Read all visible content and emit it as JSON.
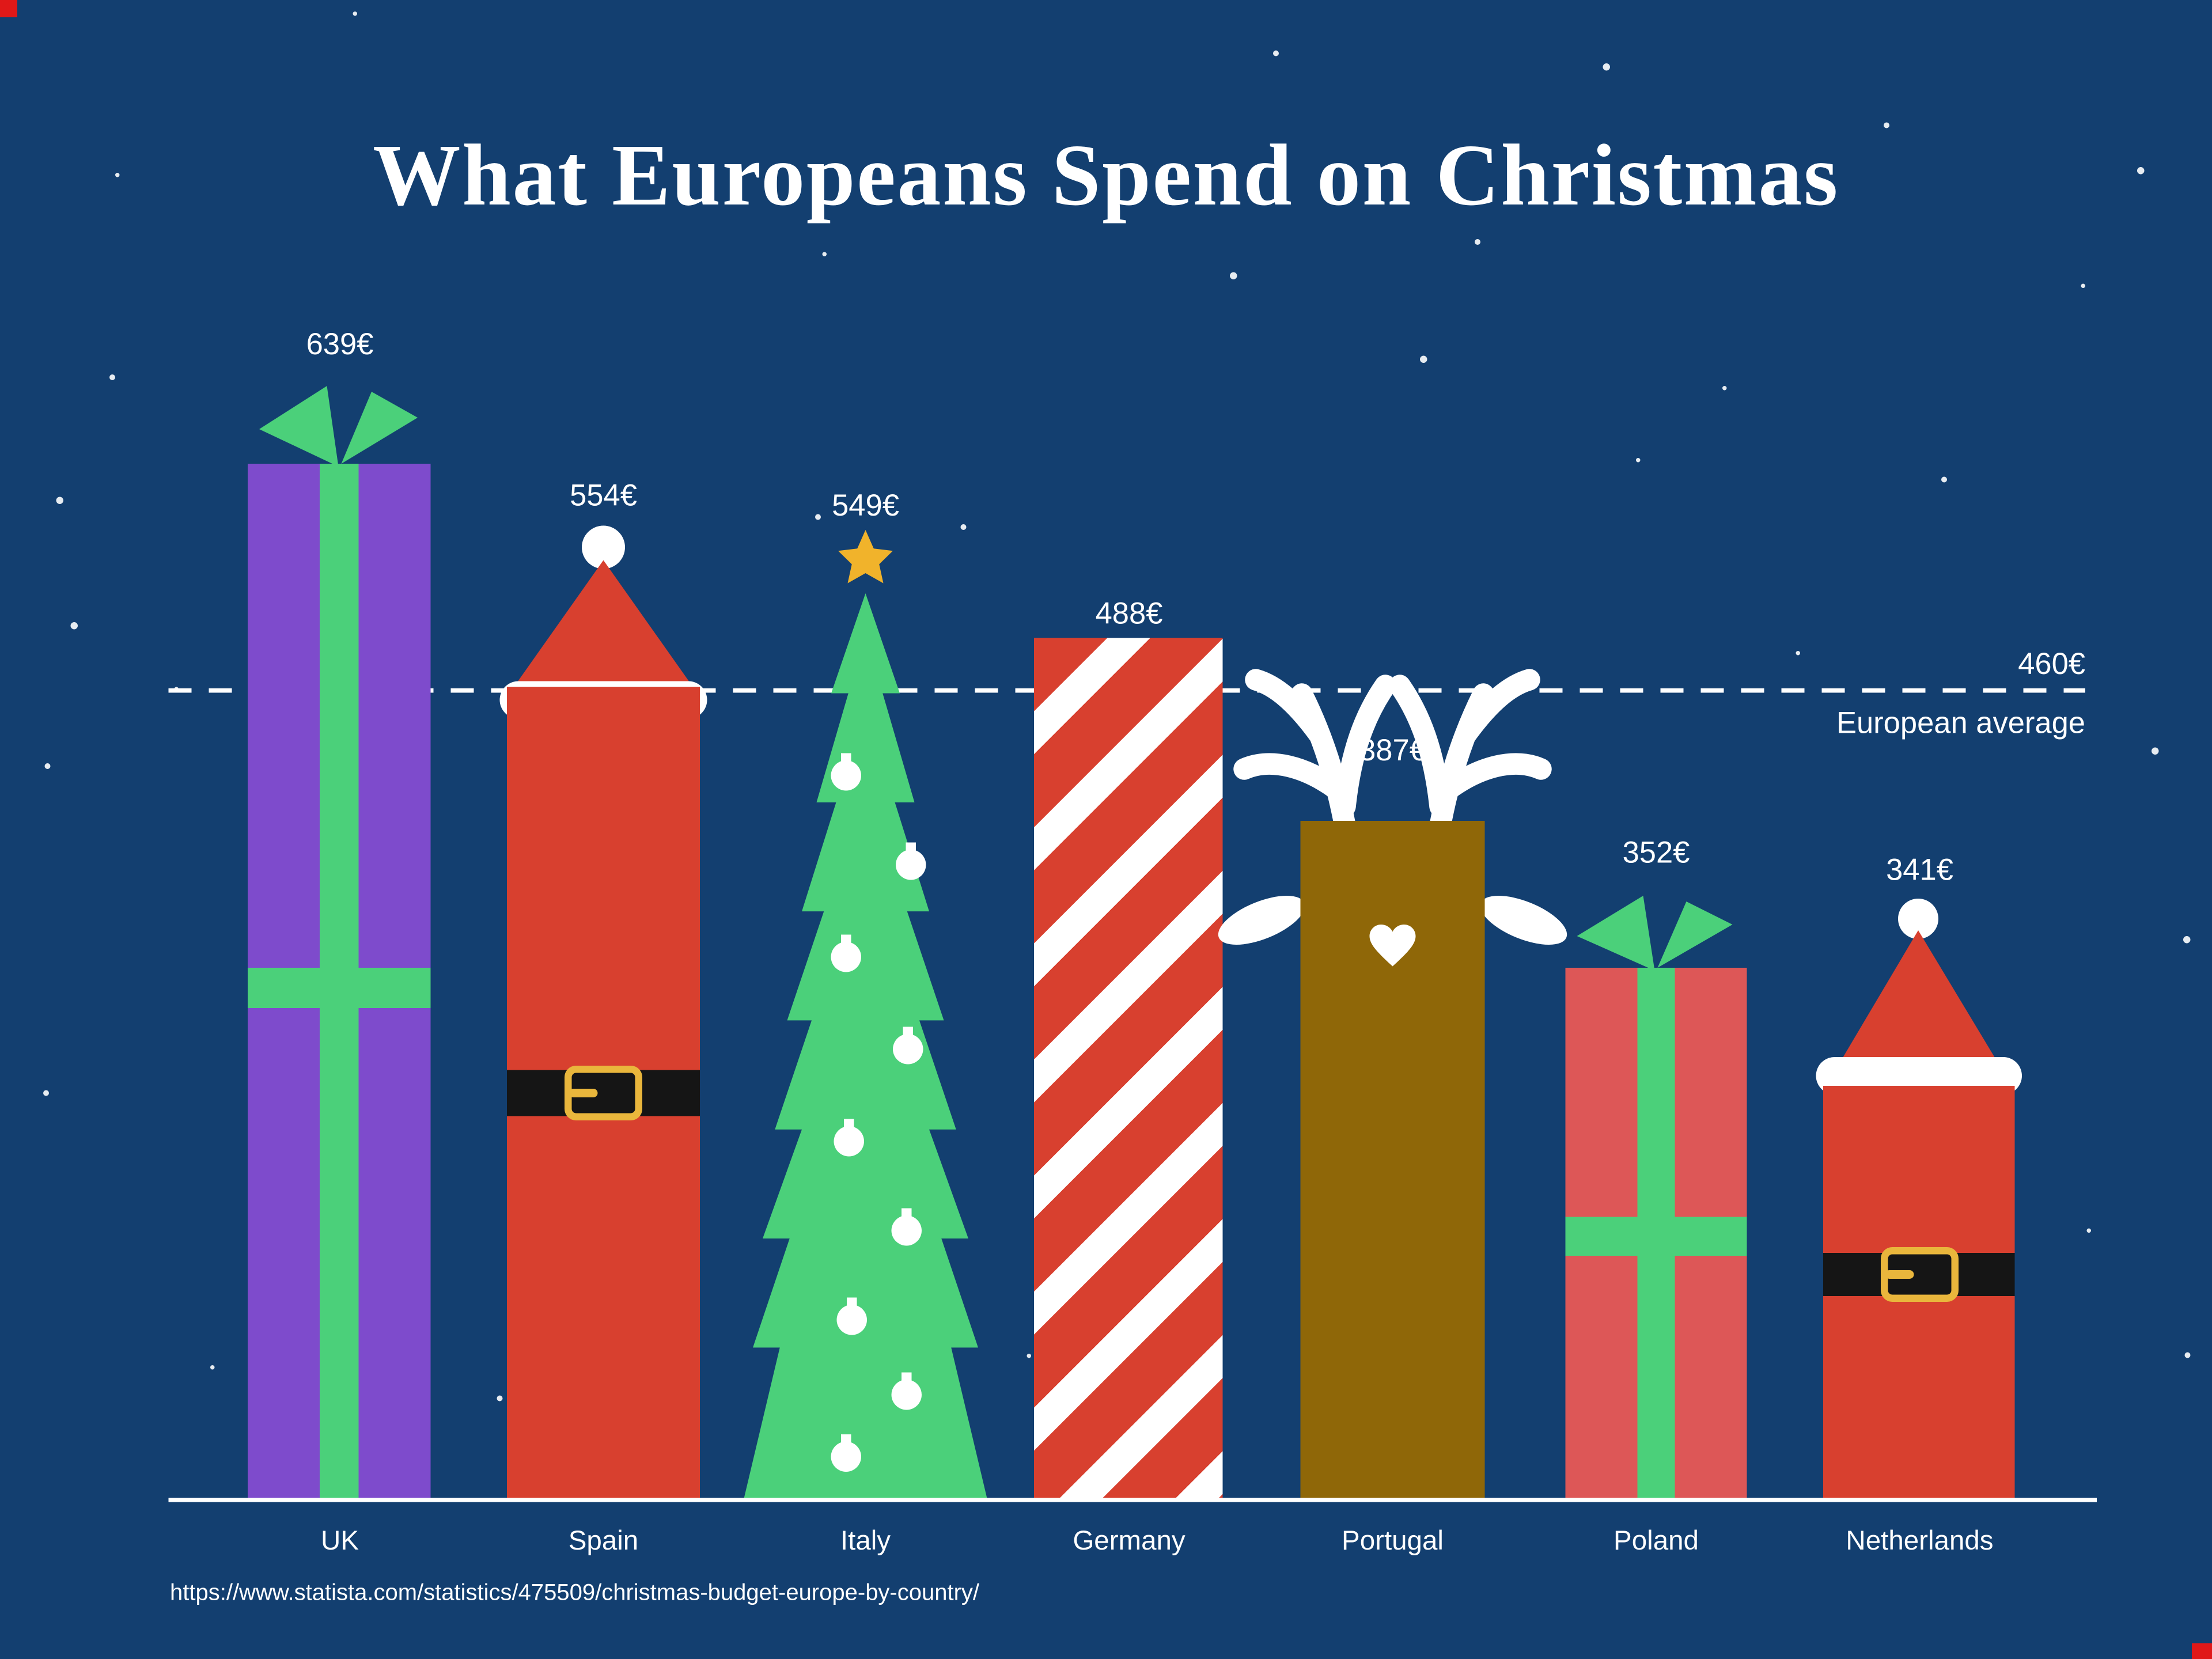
{
  "chart_data": {
    "type": "bar",
    "title": "What Europeans Spend on Christmas",
    "unit": "€",
    "categories": [
      "UK",
      "Spain",
      "Italy",
      "Germany",
      "Portugal",
      "Poland",
      "Netherlands"
    ],
    "values": [
      639,
      554,
      549,
      488,
      387,
      352,
      341
    ],
    "value_labels": [
      "639€",
      "554€",
      "549€",
      "488€",
      "387€",
      "352€",
      "341€"
    ],
    "reference_line": {
      "value": 460,
      "value_label": "460€",
      "label": "European average"
    },
    "ylim": [
      0,
      700
    ],
    "legend": false,
    "bar_motifs": [
      "purple gift box with green ribbon and bow",
      "santa suit with hat, white band and black belt",
      "christmas tree with gold star and white baubles",
      "red and white candy-cane diagonal stripes",
      "reindeer with white antlers, ears and heart nose",
      "red gift box with green ribbon and bow",
      "santa suit with hat, white band and black belt"
    ],
    "source": "https://www.statista.com/statistics/475509/christmas-budget-europe-by-country/"
  },
  "colors": {
    "background": "#133f70",
    "text": "#ffffff",
    "santa_red": "#d8402f",
    "gift_purple": "#7e4bcc",
    "ribbon_green": "#4bd07a",
    "gift_red": "#dd5757",
    "reindeer_brown": "#8f6708",
    "star_gold": "#f1b32b",
    "belt_black": "#151515",
    "buckle_gold": "#e9b63c"
  }
}
